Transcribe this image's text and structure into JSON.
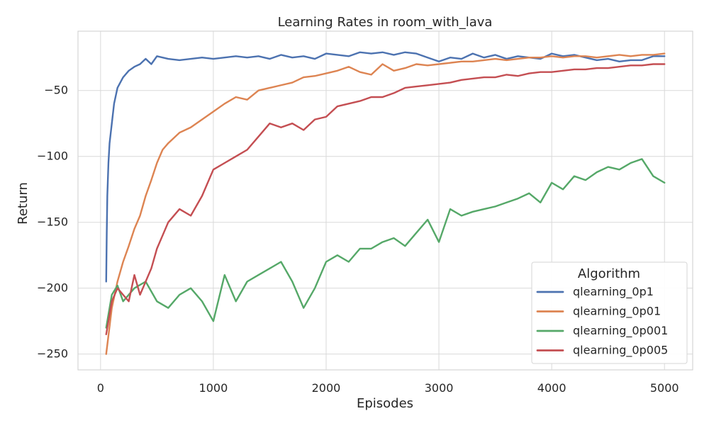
{
  "chart_data": {
    "type": "line",
    "title": "Learning Rates in room_with_lava",
    "xlabel": "Episodes",
    "ylabel": "Return",
    "xlim": [
      -200,
      5250
    ],
    "ylim": [
      -262,
      -5
    ],
    "xticks": [
      0,
      1000,
      2000,
      3000,
      4000,
      5000
    ],
    "yticks": [
      -50,
      -100,
      -150,
      -200,
      -250
    ],
    "xtick_labels": [
      "0",
      "1000",
      "2000",
      "3000",
      "4000",
      "5000"
    ],
    "ytick_labels": [
      "−50",
      "−100",
      "−150",
      "−200",
      "−250"
    ],
    "grid": true,
    "legend": {
      "title": "Algorithm",
      "position": "lower-right"
    },
    "series": [
      {
        "name": "qlearning_0p1",
        "color": "#4c72b0",
        "x": [
          50,
          55,
          60,
          70,
          80,
          100,
          120,
          150,
          200,
          250,
          300,
          350,
          400,
          450,
          500,
          600,
          700,
          800,
          900,
          1000,
          1100,
          1200,
          1300,
          1400,
          1500,
          1600,
          1700,
          1800,
          1900,
          2000,
          2100,
          2200,
          2300,
          2400,
          2500,
          2600,
          2700,
          2800,
          2900,
          3000,
          3100,
          3200,
          3300,
          3400,
          3500,
          3600,
          3700,
          3800,
          3900,
          4000,
          4100,
          4200,
          4300,
          4400,
          4500,
          4600,
          4700,
          4800,
          4900,
          5000
        ],
        "y": [
          -195,
          -158,
          -130,
          -105,
          -90,
          -75,
          -60,
          -48,
          -40,
          -35,
          -32,
          -30,
          -26,
          -30,
          -24,
          -26,
          -27,
          -26,
          -25,
          -26,
          -25,
          -24,
          -25,
          -24,
          -26,
          -23,
          -25,
          -24,
          -26,
          -22,
          -23,
          -24,
          -21,
          -22,
          -21,
          -23,
          -21,
          -22,
          -25,
          -28,
          -25,
          -26,
          -22,
          -25,
          -23,
          -26,
          -24,
          -25,
          -26,
          -22,
          -24,
          -23,
          -25,
          -27,
          -26,
          -28,
          -27,
          -27,
          -24,
          -24
        ]
      },
      {
        "name": "qlearning_0p01",
        "color": "#dd8452",
        "x": [
          50,
          100,
          150,
          200,
          250,
          300,
          350,
          400,
          450,
          500,
          550,
          600,
          700,
          800,
          900,
          1000,
          1100,
          1200,
          1300,
          1400,
          1500,
          1600,
          1700,
          1800,
          1900,
          2000,
          2100,
          2200,
          2300,
          2400,
          2500,
          2600,
          2700,
          2800,
          2900,
          3000,
          3100,
          3200,
          3300,
          3400,
          3500,
          3600,
          3700,
          3800,
          3900,
          4000,
          4100,
          4200,
          4300,
          4400,
          4500,
          4600,
          4700,
          4800,
          4900,
          5000
        ],
        "y": [
          -250,
          -215,
          -195,
          -180,
          -168,
          -155,
          -145,
          -130,
          -118,
          -105,
          -95,
          -90,
          -82,
          -78,
          -72,
          -66,
          -60,
          -55,
          -57,
          -50,
          -48,
          -46,
          -44,
          -40,
          -39,
          -37,
          -35,
          -32,
          -36,
          -38,
          -30,
          -35,
          -33,
          -30,
          -31,
          -30,
          -29,
          -28,
          -28,
          -27,
          -26,
          -27,
          -26,
          -25,
          -25,
          -24,
          -25,
          -24,
          -24,
          -25,
          -24,
          -23,
          -24,
          -23,
          -23,
          -22
        ]
      },
      {
        "name": "qlearning_0p001",
        "color": "#55a868",
        "x": [
          50,
          100,
          150,
          200,
          300,
          400,
          500,
          600,
          700,
          800,
          900,
          1000,
          1100,
          1200,
          1300,
          1400,
          1500,
          1600,
          1700,
          1800,
          1900,
          2000,
          2100,
          2200,
          2300,
          2400,
          2500,
          2600,
          2700,
          2800,
          2900,
          3000,
          3100,
          3200,
          3300,
          3400,
          3500,
          3600,
          3700,
          3800,
          3900,
          4000,
          4100,
          4200,
          4300,
          4400,
          4500,
          4600,
          4700,
          4800,
          4900,
          5000
        ],
        "y": [
          -230,
          -205,
          -198,
          -210,
          -200,
          -195,
          -210,
          -215,
          -205,
          -200,
          -210,
          -225,
          -190,
          -210,
          -195,
          -190,
          -185,
          -180,
          -195,
          -215,
          -200,
          -180,
          -175,
          -180,
          -170,
          -170,
          -165,
          -162,
          -168,
          -158,
          -148,
          -165,
          -140,
          -145,
          -142,
          -140,
          -138,
          -135,
          -132,
          -128,
          -135,
          -120,
          -125,
          -115,
          -118,
          -112,
          -108,
          -110,
          -105,
          -102,
          -115,
          -120
        ]
      },
      {
        "name": "qlearning_0p005",
        "color": "#c44e52",
        "x": [
          50,
          100,
          150,
          200,
          250,
          300,
          350,
          400,
          450,
          500,
          550,
          600,
          700,
          800,
          900,
          1000,
          1100,
          1200,
          1300,
          1400,
          1500,
          1600,
          1700,
          1800,
          1900,
          2000,
          2100,
          2200,
          2300,
          2400,
          2500,
          2600,
          2700,
          2800,
          2900,
          3000,
          3100,
          3200,
          3300,
          3400,
          3500,
          3600,
          3700,
          3800,
          3900,
          4000,
          4100,
          4200,
          4300,
          4400,
          4500,
          4600,
          4700,
          4800,
          4900,
          5000
        ],
        "y": [
          -235,
          -210,
          -200,
          -205,
          -210,
          -190,
          -205,
          -195,
          -185,
          -170,
          -160,
          -150,
          -140,
          -145,
          -130,
          -110,
          -105,
          -100,
          -95,
          -85,
          -75,
          -78,
          -75,
          -80,
          -72,
          -70,
          -62,
          -60,
          -58,
          -55,
          -55,
          -52,
          -48,
          -47,
          -46,
          -45,
          -44,
          -42,
          -41,
          -40,
          -40,
          -38,
          -39,
          -37,
          -36,
          -36,
          -35,
          -34,
          -34,
          -33,
          -33,
          -32,
          -31,
          -31,
          -30,
          -30
        ]
      }
    ]
  }
}
